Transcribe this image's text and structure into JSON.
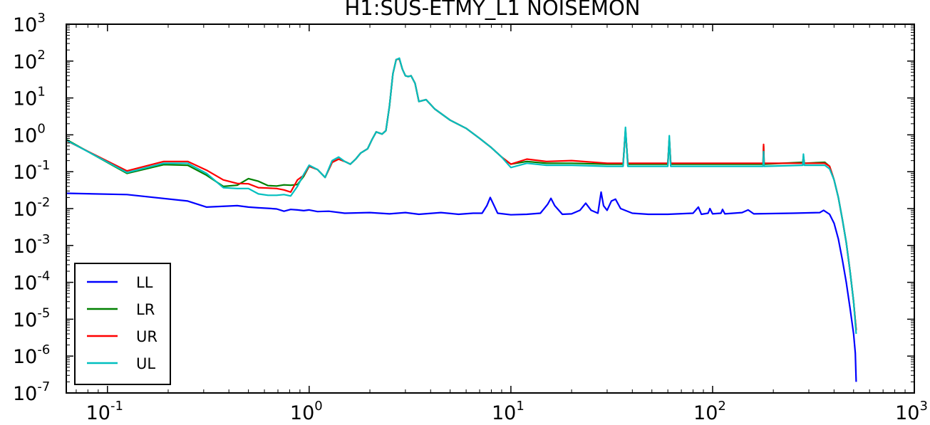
{
  "chart_data": {
    "type": "line",
    "title": "H1:SUS-ETMY_L1 NOISEMON",
    "xlabel": "",
    "ylabel": "",
    "xscale": "log",
    "yscale": "log",
    "xlim": [
      0.0625,
      1000
    ],
    "ylim": [
      1e-07,
      1000
    ],
    "x_tick_labels": [
      {
        "base": "10",
        "exp": "-1",
        "value": 0.1
      },
      {
        "base": "10",
        "exp": "0",
        "value": 1
      },
      {
        "base": "10",
        "exp": "1",
        "value": 10
      },
      {
        "base": "10",
        "exp": "2",
        "value": 100
      },
      {
        "base": "10",
        "exp": "3",
        "value": 1000
      }
    ],
    "y_tick_labels": [
      {
        "base": "10",
        "exp": "3",
        "value": 1000
      },
      {
        "base": "10",
        "exp": "2",
        "value": 100
      },
      {
        "base": "10",
        "exp": "1",
        "value": 10
      },
      {
        "base": "10",
        "exp": "0",
        "value": 1
      },
      {
        "base": "10",
        "exp": "-1",
        "value": 0.1
      },
      {
        "base": "10",
        "exp": "-2",
        "value": 0.01
      },
      {
        "base": "10",
        "exp": "-3",
        "value": 0.001
      },
      {
        "base": "10",
        "exp": "-4",
        "value": 0.0001
      },
      {
        "base": "10",
        "exp": "-5",
        "value": 1e-05
      },
      {
        "base": "10",
        "exp": "-6",
        "value": 1e-06
      },
      {
        "base": "10",
        "exp": "-7",
        "value": 1e-07
      }
    ],
    "grid": false,
    "legend_position": "bottom-left",
    "series": [
      {
        "name": "LL",
        "color": "#0000ff",
        "points": [
          [
            0.0625,
            0.026
          ],
          [
            0.125,
            0.024
          ],
          [
            0.25,
            0.016
          ],
          [
            0.31,
            0.011
          ],
          [
            0.44,
            0.012
          ],
          [
            0.5,
            0.011
          ],
          [
            0.56,
            0.0105
          ],
          [
            0.625,
            0.0102
          ],
          [
            0.69,
            0.0098
          ],
          [
            0.75,
            0.0085
          ],
          [
            0.81,
            0.0095
          ],
          [
            0.875,
            0.0092
          ],
          [
            0.94,
            0.0088
          ],
          [
            1.0,
            0.0092
          ],
          [
            1.1,
            0.0083
          ],
          [
            1.25,
            0.0085
          ],
          [
            1.5,
            0.0075
          ],
          [
            2.0,
            0.0078
          ],
          [
            2.5,
            0.0072
          ],
          [
            3.0,
            0.0078
          ],
          [
            3.5,
            0.007
          ],
          [
            4.5,
            0.0078
          ],
          [
            5.5,
            0.007
          ],
          [
            6.5,
            0.0075
          ],
          [
            7.2,
            0.0075
          ],
          [
            7.6,
            0.012
          ],
          [
            7.9,
            0.02
          ],
          [
            8.2,
            0.013
          ],
          [
            8.6,
            0.0075
          ],
          [
            10,
            0.0068
          ],
          [
            12,
            0.007
          ],
          [
            14,
            0.0075
          ],
          [
            15.2,
            0.013
          ],
          [
            15.8,
            0.019
          ],
          [
            16.5,
            0.012
          ],
          [
            18,
            0.007
          ],
          [
            20,
            0.0072
          ],
          [
            22,
            0.009
          ],
          [
            23.5,
            0.014
          ],
          [
            25,
            0.009
          ],
          [
            27,
            0.0075
          ],
          [
            28,
            0.028
          ],
          [
            28.8,
            0.012
          ],
          [
            30,
            0.009
          ],
          [
            31.5,
            0.016
          ],
          [
            33,
            0.018
          ],
          [
            35,
            0.01
          ],
          [
            40,
            0.0075
          ],
          [
            48,
            0.007
          ],
          [
            60,
            0.007
          ],
          [
            80,
            0.0075
          ],
          [
            85,
            0.011
          ],
          [
            88,
            0.007
          ],
          [
            95,
            0.0075
          ],
          [
            97,
            0.01
          ],
          [
            100,
            0.0072
          ],
          [
            110,
            0.0075
          ],
          [
            112,
            0.0095
          ],
          [
            115,
            0.0072
          ],
          [
            140,
            0.0078
          ],
          [
            150,
            0.0092
          ],
          [
            160,
            0.0072
          ],
          [
            250,
            0.0075
          ],
          [
            340,
            0.0078
          ],
          [
            355,
            0.009
          ],
          [
            380,
            0.007
          ],
          [
            400,
            0.004
          ],
          [
            420,
            0.0015
          ],
          [
            440,
            0.0004
          ],
          [
            460,
            0.0001
          ],
          [
            480,
            2e-05
          ],
          [
            500,
            4e-06
          ],
          [
            510,
            1.2e-06
          ],
          [
            515,
            2e-07
          ]
        ]
      },
      {
        "name": "LR",
        "color": "#008000",
        "points": [
          [
            0.0625,
            0.75
          ],
          [
            0.125,
            0.09
          ],
          [
            0.19,
            0.155
          ],
          [
            0.25,
            0.15
          ],
          [
            0.31,
            0.08
          ],
          [
            0.375,
            0.04
          ],
          [
            0.44,
            0.043
          ],
          [
            0.5,
            0.065
          ],
          [
            0.56,
            0.055
          ],
          [
            0.625,
            0.042
          ],
          [
            0.69,
            0.041
          ],
          [
            0.75,
            0.044
          ],
          [
            0.81,
            0.043
          ],
          [
            0.875,
            0.045
          ],
          [
            0.94,
            0.075
          ],
          [
            1.0,
            0.14
          ],
          [
            1.1,
            0.115
          ],
          [
            1.2,
            0.07
          ],
          [
            1.3,
            0.18
          ],
          [
            1.4,
            0.22
          ],
          [
            1.5,
            0.19
          ],
          [
            1.6,
            0.16
          ],
          [
            1.7,
            0.22
          ],
          [
            1.8,
            0.32
          ],
          [
            1.95,
            0.42
          ],
          [
            2.05,
            0.75
          ],
          [
            2.15,
            1.2
          ],
          [
            2.3,
            1.05
          ],
          [
            2.4,
            1.3
          ],
          [
            2.5,
            6.0
          ],
          [
            2.6,
            45
          ],
          [
            2.7,
            110
          ],
          [
            2.8,
            115
          ],
          [
            2.9,
            60
          ],
          [
            3.0,
            40
          ],
          [
            3.1,
            38
          ],
          [
            3.2,
            40
          ],
          [
            3.35,
            25
          ],
          [
            3.5,
            8.0
          ],
          [
            3.8,
            9.0
          ],
          [
            4.2,
            5.0
          ],
          [
            5.0,
            2.5
          ],
          [
            6.0,
            1.5
          ],
          [
            7.0,
            0.8
          ],
          [
            8.0,
            0.45
          ],
          [
            9.0,
            0.25
          ],
          [
            10,
            0.16
          ],
          [
            12,
            0.19
          ],
          [
            15,
            0.17
          ],
          [
            20,
            0.17
          ],
          [
            30,
            0.16
          ],
          [
            36,
            0.16
          ],
          [
            37,
            1.4
          ],
          [
            38,
            0.16
          ],
          [
            50,
            0.16
          ],
          [
            60,
            0.16
          ],
          [
            61,
            0.8
          ],
          [
            62,
            0.16
          ],
          [
            100,
            0.16
          ],
          [
            178,
            0.16
          ],
          [
            179,
            0.5
          ],
          [
            180,
            0.16
          ],
          [
            280,
            0.18
          ],
          [
            282,
            0.26
          ],
          [
            285,
            0.17
          ],
          [
            360,
            0.18
          ],
          [
            380,
            0.14
          ],
          [
            400,
            0.06
          ],
          [
            420,
            0.02
          ],
          [
            440,
            0.005
          ],
          [
            460,
            0.0012
          ],
          [
            480,
            0.0002
          ],
          [
            500,
            3e-05
          ],
          [
            515,
            5e-06
          ]
        ]
      },
      {
        "name": "UR",
        "color": "#ff0000",
        "points": [
          [
            0.0625,
            0.7
          ],
          [
            0.125,
            0.105
          ],
          [
            0.19,
            0.19
          ],
          [
            0.25,
            0.19
          ],
          [
            0.31,
            0.11
          ],
          [
            0.375,
            0.06
          ],
          [
            0.44,
            0.048
          ],
          [
            0.5,
            0.047
          ],
          [
            0.56,
            0.037
          ],
          [
            0.625,
            0.036
          ],
          [
            0.69,
            0.035
          ],
          [
            0.75,
            0.032
          ],
          [
            0.81,
            0.028
          ],
          [
            0.875,
            0.06
          ],
          [
            0.94,
            0.08
          ],
          [
            1.0,
            0.14
          ],
          [
            1.1,
            0.115
          ],
          [
            1.2,
            0.07
          ],
          [
            1.3,
            0.18
          ],
          [
            1.4,
            0.22
          ],
          [
            1.5,
            0.19
          ],
          [
            1.6,
            0.16
          ],
          [
            1.7,
            0.22
          ],
          [
            1.8,
            0.32
          ],
          [
            1.95,
            0.42
          ],
          [
            2.05,
            0.75
          ],
          [
            2.15,
            1.2
          ],
          [
            2.3,
            1.05
          ],
          [
            2.4,
            1.3
          ],
          [
            2.5,
            6.0
          ],
          [
            2.6,
            45
          ],
          [
            2.7,
            110
          ],
          [
            2.8,
            115
          ],
          [
            2.9,
            60
          ],
          [
            3.0,
            40
          ],
          [
            3.1,
            38
          ],
          [
            3.2,
            40
          ],
          [
            3.35,
            25
          ],
          [
            3.5,
            8.0
          ],
          [
            3.8,
            9.0
          ],
          [
            4.2,
            5.0
          ],
          [
            5.0,
            2.5
          ],
          [
            6.0,
            1.5
          ],
          [
            7.0,
            0.8
          ],
          [
            8.0,
            0.45
          ],
          [
            9.0,
            0.25
          ],
          [
            10,
            0.16
          ],
          [
            12,
            0.22
          ],
          [
            15,
            0.19
          ],
          [
            20,
            0.2
          ],
          [
            30,
            0.17
          ],
          [
            36,
            0.17
          ],
          [
            37,
            1.3
          ],
          [
            38,
            0.17
          ],
          [
            50,
            0.17
          ],
          [
            60,
            0.17
          ],
          [
            61,
            0.8
          ],
          [
            62,
            0.17
          ],
          [
            100,
            0.17
          ],
          [
            178,
            0.17
          ],
          [
            179,
            0.55
          ],
          [
            180,
            0.17
          ],
          [
            280,
            0.17
          ],
          [
            282,
            0.24
          ],
          [
            285,
            0.17
          ],
          [
            360,
            0.17
          ],
          [
            380,
            0.14
          ],
          [
            400,
            0.06
          ],
          [
            420,
            0.02
          ],
          [
            440,
            0.005
          ],
          [
            460,
            0.0012
          ],
          [
            480,
            0.0002
          ],
          [
            500,
            3e-05
          ],
          [
            515,
            5e-06
          ]
        ]
      },
      {
        "name": "UL",
        "color": "#00bfbf",
        "points": [
          [
            0.0625,
            0.72
          ],
          [
            0.125,
            0.095
          ],
          [
            0.19,
            0.17
          ],
          [
            0.25,
            0.17
          ],
          [
            0.31,
            0.09
          ],
          [
            0.375,
            0.037
          ],
          [
            0.44,
            0.035
          ],
          [
            0.5,
            0.035
          ],
          [
            0.56,
            0.025
          ],
          [
            0.625,
            0.023
          ],
          [
            0.69,
            0.023
          ],
          [
            0.75,
            0.024
          ],
          [
            0.81,
            0.022
          ],
          [
            0.875,
            0.04
          ],
          [
            0.94,
            0.085
          ],
          [
            1.0,
            0.15
          ],
          [
            1.1,
            0.115
          ],
          [
            1.2,
            0.07
          ],
          [
            1.3,
            0.2
          ],
          [
            1.4,
            0.25
          ],
          [
            1.5,
            0.19
          ],
          [
            1.6,
            0.16
          ],
          [
            1.7,
            0.22
          ],
          [
            1.8,
            0.32
          ],
          [
            1.95,
            0.42
          ],
          [
            2.05,
            0.75
          ],
          [
            2.15,
            1.2
          ],
          [
            2.3,
            1.05
          ],
          [
            2.4,
            1.3
          ],
          [
            2.5,
            6.0
          ],
          [
            2.6,
            45
          ],
          [
            2.7,
            110
          ],
          [
            2.8,
            120
          ],
          [
            2.9,
            60
          ],
          [
            3.0,
            40
          ],
          [
            3.1,
            38
          ],
          [
            3.2,
            40
          ],
          [
            3.35,
            25
          ],
          [
            3.5,
            8.0
          ],
          [
            3.8,
            9.0
          ],
          [
            4.2,
            5.0
          ],
          [
            5.0,
            2.5
          ],
          [
            6.0,
            1.5
          ],
          [
            7.0,
            0.8
          ],
          [
            8.0,
            0.45
          ],
          [
            9.0,
            0.25
          ],
          [
            10,
            0.13
          ],
          [
            12,
            0.17
          ],
          [
            15,
            0.15
          ],
          [
            20,
            0.15
          ],
          [
            30,
            0.14
          ],
          [
            36,
            0.14
          ],
          [
            37,
            1.6
          ],
          [
            38,
            0.14
          ],
          [
            50,
            0.14
          ],
          [
            60,
            0.14
          ],
          [
            61,
            0.95
          ],
          [
            62,
            0.14
          ],
          [
            100,
            0.14
          ],
          [
            178,
            0.14
          ],
          [
            179,
            0.35
          ],
          [
            180,
            0.14
          ],
          [
            280,
            0.15
          ],
          [
            282,
            0.3
          ],
          [
            285,
            0.15
          ],
          [
            360,
            0.15
          ],
          [
            380,
            0.12
          ],
          [
            400,
            0.06
          ],
          [
            420,
            0.02
          ],
          [
            440,
            0.005
          ],
          [
            460,
            0.0012
          ],
          [
            480,
            0.0002
          ],
          [
            500,
            3e-05
          ],
          [
            515,
            4e-06
          ]
        ]
      }
    ]
  }
}
